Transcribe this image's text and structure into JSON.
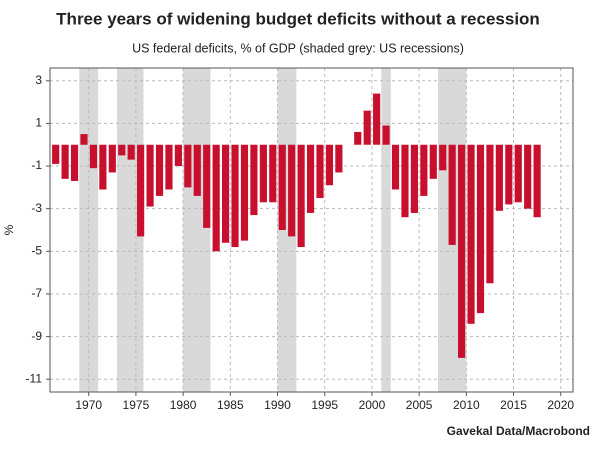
{
  "chart_data": {
    "type": "bar",
    "title": "Three years of widening budget deficits without a recession",
    "subtitle": "US federal deficits, % of GDP (shaded grey: US recessions)",
    "y_label": "%",
    "source": "Gavekal Data/Macrobond",
    "x": [
      1966,
      1967,
      1968,
      1969,
      1970,
      1971,
      1972,
      1973,
      1974,
      1975,
      1976,
      1977,
      1978,
      1979,
      1980,
      1981,
      1982,
      1983,
      1984,
      1985,
      1986,
      1987,
      1988,
      1989,
      1990,
      1991,
      1992,
      1993,
      1994,
      1995,
      1996,
      1997,
      1998,
      1999,
      2000,
      2001,
      2002,
      2003,
      2004,
      2005,
      2006,
      2007,
      2008,
      2009,
      2010,
      2011,
      2012,
      2013,
      2014,
      2015,
      2016,
      2017
    ],
    "values": [
      -0.9,
      -1.6,
      -1.7,
      0.5,
      -1.1,
      -2.1,
      -1.3,
      -0.5,
      -0.7,
      -4.3,
      -2.9,
      -2.4,
      -2.1,
      -1.0,
      -2.0,
      -2.4,
      -3.9,
      -5.0,
      -4.6,
      -4.8,
      -4.5,
      -3.3,
      -2.7,
      -2.7,
      -4.0,
      -4.3,
      -4.8,
      -3.2,
      -2.5,
      -1.9,
      -1.3,
      0,
      0.6,
      1.6,
      2.4,
      0.9,
      -2.1,
      -3.4,
      -3.2,
      -2.4,
      -1.6,
      -1.2,
      -4.7,
      -10.0,
      -8.4,
      -7.9,
      -6.5,
      -3.1,
      -2.8,
      -2.7,
      -3.0,
      -3.4
    ],
    "color": "#c8102e",
    "recessions": [
      [
        1969,
        1971
      ],
      [
        1973,
        1975.8
      ],
      [
        1980,
        1982.9
      ],
      [
        1990,
        1992
      ],
      [
        2001,
        2002
      ],
      [
        2007,
        2010
      ]
    ],
    "recession_color": "#d9d9d9",
    "xlim": [
      1965.9,
      2021.3
    ],
    "xticks": [
      1970,
      1975,
      1980,
      1985,
      1990,
      1995,
      2000,
      2005,
      2010,
      2015,
      2020
    ],
    "ylim": [
      -11.6,
      3.6
    ],
    "yticks": [
      3,
      1,
      -1,
      -3,
      -5,
      -7,
      -9,
      -11
    ],
    "grid": true
  }
}
